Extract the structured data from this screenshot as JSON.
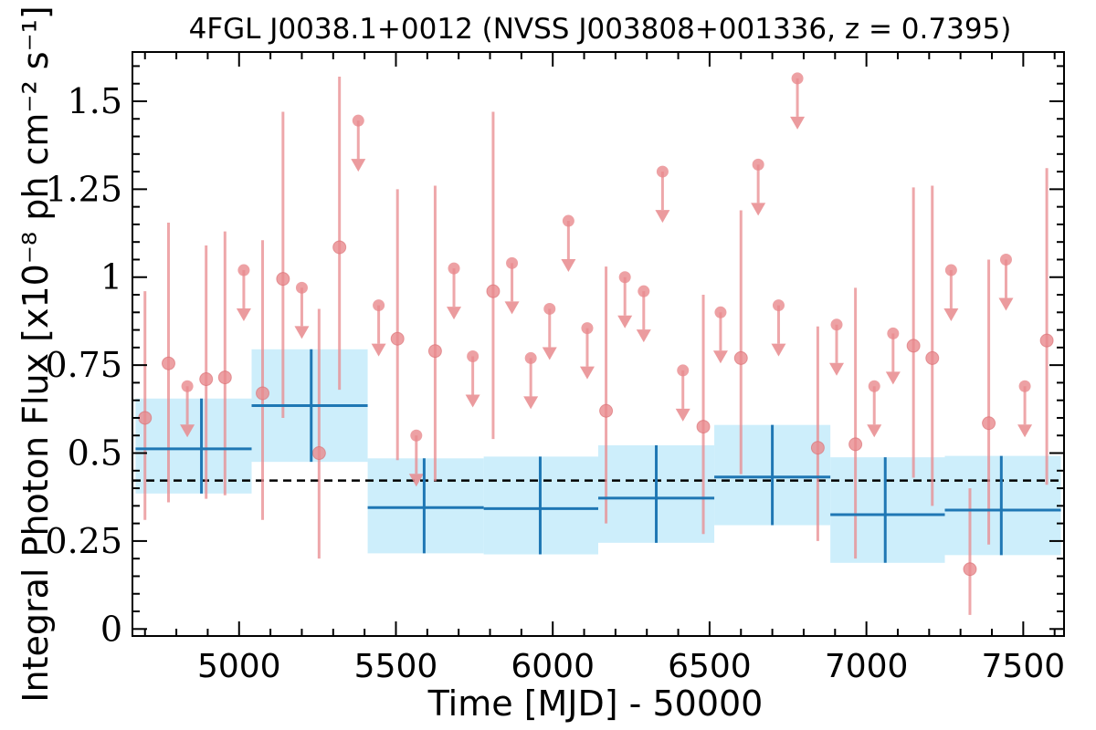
{
  "chart_data": {
    "type": "scatter",
    "title": "4FGL J0038.1+0012 (NVSS J003808+001336, z = 0.7395)",
    "xlabel": "Time [MJD] - 50000",
    "ylabel": "Integral Photon Flux [x10⁻⁸ ph cm⁻² s⁻¹]",
    "xlim": [
      4660,
      7630
    ],
    "ylim": [
      -0.02,
      1.64
    ],
    "xticks": [
      {
        "value": 5000,
        "label": "5000"
      },
      {
        "value": 5500,
        "label": "5500"
      },
      {
        "value": 6000,
        "label": "6000"
      },
      {
        "value": 6500,
        "label": "6500"
      },
      {
        "value": 7000,
        "label": "7000"
      },
      {
        "value": 7500,
        "label": "7500"
      }
    ],
    "yticks": [
      {
        "value": 0,
        "label": "0"
      },
      {
        "value": 0.25,
        "label": "0.25"
      },
      {
        "value": 0.5,
        "label": "0.5"
      },
      {
        "value": 0.75,
        "label": "0.75"
      },
      {
        "value": 1.0,
        "label": "1"
      },
      {
        "value": 1.25,
        "label": "1.25"
      },
      {
        "value": 1.5,
        "label": "1.5"
      }
    ],
    "mean_flux": 0.422,
    "colors": {
      "points": "#e8898d",
      "bins_line": "#1f77b4",
      "bins_fill": "#cdeefb",
      "mean_line": "#000000"
    },
    "short_bins": {
      "detections": [
        {
          "x": 4700,
          "y": 0.6,
          "lo": 0.31,
          "hi": 0.96
        },
        {
          "x": 4775,
          "y": 0.755,
          "lo": 0.36,
          "hi": 1.155
        },
        {
          "x": 4895,
          "y": 0.71,
          "lo": 0.37,
          "hi": 1.09
        },
        {
          "x": 4955,
          "y": 0.715,
          "lo": 0.38,
          "hi": 1.13
        },
        {
          "x": 5075,
          "y": 0.67,
          "lo": 0.31,
          "hi": 1.105
        },
        {
          "x": 5140,
          "y": 0.995,
          "lo": 0.6,
          "hi": 1.47
        },
        {
          "x": 5255,
          "y": 0.5,
          "lo": 0.2,
          "hi": 0.91
        },
        {
          "x": 5320,
          "y": 1.085,
          "lo": 0.68,
          "hi": 1.57
        },
        {
          "x": 5505,
          "y": 0.825,
          "lo": 0.48,
          "hi": 1.25
        },
        {
          "x": 5625,
          "y": 0.79,
          "lo": 0.42,
          "hi": 1.26
        },
        {
          "x": 5810,
          "y": 0.96,
          "lo": 0.54,
          "hi": 1.47
        },
        {
          "x": 6170,
          "y": 0.62,
          "lo": 0.3,
          "hi": 1.03
        },
        {
          "x": 6480,
          "y": 0.575,
          "lo": 0.27,
          "hi": 0.95
        },
        {
          "x": 6600,
          "y": 0.77,
          "lo": 0.44,
          "hi": 1.19
        },
        {
          "x": 6845,
          "y": 0.515,
          "lo": 0.25,
          "hi": 0.86
        },
        {
          "x": 6965,
          "y": 0.525,
          "lo": 0.2,
          "hi": 0.97
        },
        {
          "x": 7150,
          "y": 0.805,
          "lo": 0.43,
          "hi": 1.255
        },
        {
          "x": 7210,
          "y": 0.77,
          "lo": 0.35,
          "hi": 1.26
        },
        {
          "x": 7330,
          "y": 0.17,
          "lo": 0.04,
          "hi": 0.4
        },
        {
          "x": 7390,
          "y": 0.585,
          "lo": 0.24,
          "hi": 1.05
        },
        {
          "x": 7575,
          "y": 0.82,
          "lo": 0.41,
          "hi": 1.31
        }
      ],
      "upper_limits": [
        {
          "x": 4835,
          "y": 0.69
        },
        {
          "x": 5015,
          "y": 1.02
        },
        {
          "x": 5200,
          "y": 0.97
        },
        {
          "x": 5380,
          "y": 1.445
        },
        {
          "x": 5445,
          "y": 0.92
        },
        {
          "x": 5565,
          "y": 0.55
        },
        {
          "x": 5685,
          "y": 1.025
        },
        {
          "x": 5745,
          "y": 0.775
        },
        {
          "x": 5870,
          "y": 1.04
        },
        {
          "x": 5930,
          "y": 0.77
        },
        {
          "x": 5990,
          "y": 0.91
        },
        {
          "x": 6050,
          "y": 1.16
        },
        {
          "x": 6110,
          "y": 0.855
        },
        {
          "x": 6230,
          "y": 1.0
        },
        {
          "x": 6290,
          "y": 0.96
        },
        {
          "x": 6350,
          "y": 1.3
        },
        {
          "x": 6415,
          "y": 0.735
        },
        {
          "x": 6535,
          "y": 0.9
        },
        {
          "x": 6655,
          "y": 1.32
        },
        {
          "x": 6720,
          "y": 0.92
        },
        {
          "x": 6780,
          "y": 1.565
        },
        {
          "x": 6905,
          "y": 0.865
        },
        {
          "x": 7025,
          "y": 0.69
        },
        {
          "x": 7085,
          "y": 0.84
        },
        {
          "x": 7270,
          "y": 1.02
        },
        {
          "x": 7445,
          "y": 1.05
        },
        {
          "x": 7505,
          "y": 0.69
        }
      ]
    },
    "long_bins": [
      {
        "x0": 4670,
        "x1": 5040,
        "xc": 4880,
        "y": 0.512,
        "lo": 0.385,
        "hi": 0.655
      },
      {
        "x0": 5040,
        "x1": 5410,
        "xc": 5230,
        "y": 0.635,
        "lo": 0.475,
        "hi": 0.795
      },
      {
        "x0": 5410,
        "x1": 5780,
        "xc": 5590,
        "y": 0.345,
        "lo": 0.215,
        "hi": 0.485
      },
      {
        "x0": 5780,
        "x1": 6145,
        "xc": 5960,
        "y": 0.342,
        "lo": 0.212,
        "hi": 0.49
      },
      {
        "x0": 6145,
        "x1": 6515,
        "xc": 6330,
        "y": 0.372,
        "lo": 0.245,
        "hi": 0.522
      },
      {
        "x0": 6515,
        "x1": 6885,
        "xc": 6700,
        "y": 0.432,
        "lo": 0.295,
        "hi": 0.58
      },
      {
        "x0": 6885,
        "x1": 7250,
        "xc": 7060,
        "y": 0.325,
        "lo": 0.188,
        "hi": 0.488
      },
      {
        "x0": 7250,
        "x1": 7620,
        "xc": 7430,
        "y": 0.338,
        "lo": 0.21,
        "hi": 0.492
      }
    ]
  }
}
